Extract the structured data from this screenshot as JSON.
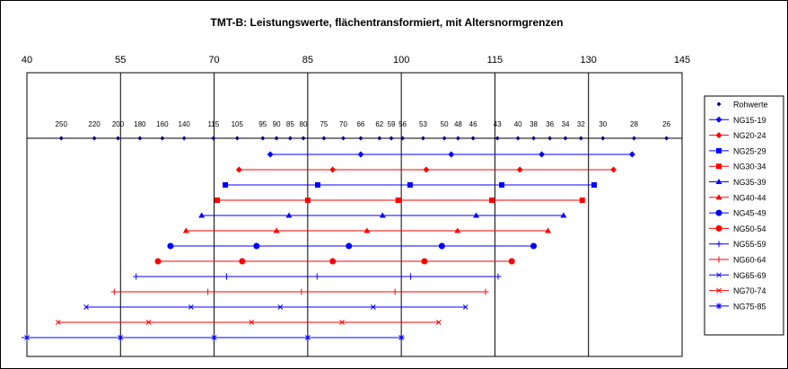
{
  "chart_data": {
    "type": "line",
    "title": "TMT-B: Leistungswerte, flächentransformiert, mit Altersnormgrenzen",
    "xlim": [
      40,
      145
    ],
    "x_ticks": [
      "40",
      "55",
      "70",
      "85",
      "100",
      "115",
      "130",
      "145"
    ],
    "x_tick_values": [
      40,
      55,
      70,
      85,
      100,
      115,
      130,
      145
    ],
    "gridlines": [
      55,
      70,
      85,
      100,
      115,
      130
    ],
    "legend_position": "right",
    "rohwerte": {
      "name": "Rohwerte",
      "color": "#000080",
      "marker": "diamond",
      "labels": [
        "250",
        "220",
        "200",
        "180",
        "160",
        "140",
        "115",
        "105",
        "95",
        "90",
        "85",
        "80",
        "75",
        "70",
        "66",
        "62",
        "59",
        "56",
        "53",
        "50",
        "48",
        "46",
        "43",
        "40",
        "38",
        "36",
        "34",
        "32",
        "30",
        "28",
        "26"
      ],
      "x": [
        45.5,
        50.8,
        54.6,
        58.1,
        61.7,
        65.2,
        69.9,
        73.7,
        77.8,
        80.0,
        82.2,
        84.3,
        87.6,
        90.7,
        93.5,
        96.5,
        98.4,
        100.2,
        103.5,
        106.9,
        109.1,
        111.5,
        115.4,
        118.7,
        121.2,
        123.8,
        126.3,
        128.8,
        132.3,
        137.3,
        142.5
      ]
    },
    "series": [
      {
        "name": "NG15-19",
        "color": "#0000ff",
        "marker": "diamond",
        "x": [
          79,
          93.5,
          108,
          122.5,
          137
        ]
      },
      {
        "name": "NG20-24",
        "color": "#ff0000",
        "marker": "diamond",
        "x": [
          74,
          89,
          104,
          119,
          134
        ]
      },
      {
        "name": "NG25-29",
        "color": "#0000ff",
        "marker": "square",
        "x": [
          71.8,
          86.6,
          101.4,
          116.1,
          130.9
        ]
      },
      {
        "name": "NG30-34",
        "color": "#ff0000",
        "marker": "square",
        "x": [
          70.5,
          85,
          99.5,
          114.5,
          129
        ]
      },
      {
        "name": "NG35-39",
        "color": "#0000ff",
        "marker": "triangle",
        "x": [
          68,
          82,
          97,
          112,
          126
        ]
      },
      {
        "name": "NG40-44",
        "color": "#ff0000",
        "marker": "triangle",
        "x": [
          65.5,
          80,
          94.5,
          109,
          123.5
        ]
      },
      {
        "name": "NG45-49",
        "color": "#0000ff",
        "marker": "circle",
        "x": [
          63,
          76.8,
          91.6,
          106.5,
          121.2
        ]
      },
      {
        "name": "NG50-54",
        "color": "#ff0000",
        "marker": "circle",
        "x": [
          61,
          74.5,
          89,
          103.7,
          117.7
        ]
      },
      {
        "name": "NG55-59",
        "color": "#0000ff",
        "marker": "plus",
        "x": [
          57.5,
          72,
          86.5,
          101.5,
          115.5
        ]
      },
      {
        "name": "NG60-64",
        "color": "#ff0000",
        "marker": "plus",
        "x": [
          54,
          69,
          84,
          99,
          113.5
        ]
      },
      {
        "name": "NG65-69",
        "color": "#0000ff",
        "marker": "x",
        "x": [
          49.5,
          66.3,
          80.6,
          95.5,
          110.3
        ]
      },
      {
        "name": "NG70-74",
        "color": "#ff0000",
        "marker": "x",
        "x": [
          45,
          59.5,
          76,
          90.5,
          106
        ]
      },
      {
        "name": "NG75-85",
        "color": "#0000ff",
        "marker": "star",
        "x": [
          40,
          55,
          70,
          85,
          100
        ]
      }
    ]
  }
}
